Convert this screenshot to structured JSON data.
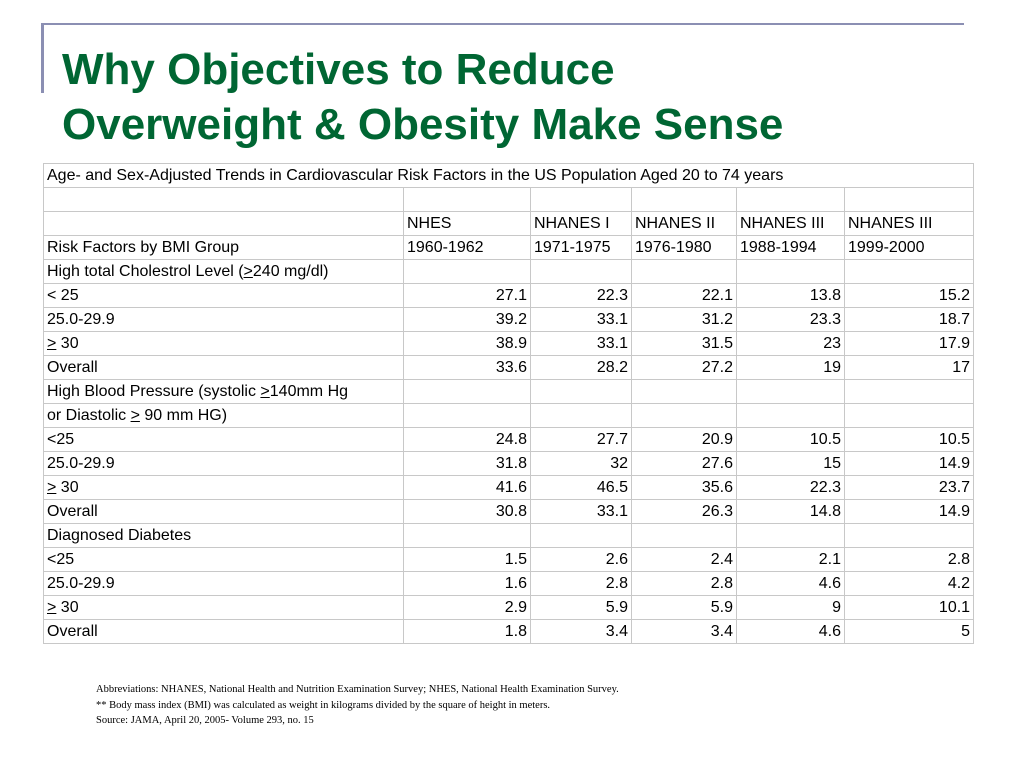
{
  "title": {
    "line1": "Why Objectives to Reduce",
    "line2": "Overweight & Obesity Make Sense"
  },
  "table": {
    "caption": "Age- and Sex-Adjusted Trends in Cardiovascular Risk Factors in the US Population Aged 20 to 74 years",
    "survey_headers": [
      "NHES",
      "NHANES I",
      "NHANES II",
      "NHANES III",
      "NHANES III"
    ],
    "row_header_label": "Risk Factors by BMI Group",
    "years": [
      "1960-1962",
      "1971-1975",
      "1976-1980",
      "1988-1994",
      "1999-2000"
    ],
    "cholesterol": {
      "heading_pre": "High total Cholestrol Level (",
      "heading_sym": ">",
      "heading_post": "240 mg/dl)",
      "rows": [
        {
          "label": "< 25",
          "values": [
            "27.1",
            "22.3",
            "22.1",
            "13.8",
            "15.2"
          ]
        },
        {
          "label": "25.0-29.9",
          "values": [
            "39.2",
            "33.1",
            "31.2",
            "23.3",
            "18.7"
          ]
        },
        {
          "label_sym": ">",
          "label": "30",
          "values": [
            "38.9",
            "33.1",
            "31.5",
            "23",
            "17.9"
          ]
        },
        {
          "label": "Overall",
          "values": [
            "33.6",
            "28.2",
            "27.2",
            "19",
            "17"
          ]
        }
      ]
    },
    "blood_pressure": {
      "heading1_pre": "High Blood Pressure (systolic ",
      "heading1_sym": ">",
      "heading1_post": "140mm Hg",
      "heading2_pre": "or Diastolic ",
      "heading2_sym": ">",
      "heading2_post": " 90 mm HG)",
      "rows": [
        {
          "label": "<25",
          "values": [
            "24.8",
            "27.7",
            "20.9",
            "10.5",
            "10.5"
          ]
        },
        {
          "label": "25.0-29.9",
          "values": [
            "31.8",
            "32",
            "27.6",
            "15",
            "14.9"
          ]
        },
        {
          "label_sym": ">",
          "label": "30",
          "values": [
            "41.6",
            "46.5",
            "35.6",
            "22.3",
            "23.7"
          ]
        },
        {
          "label": "Overall",
          "values": [
            "30.8",
            "33.1",
            "26.3",
            "14.8",
            "14.9"
          ]
        }
      ]
    },
    "diabetes": {
      "heading": "Diagnosed Diabetes",
      "rows": [
        {
          "label": "<25",
          "values": [
            "1.5",
            "2.6",
            "2.4",
            "2.1",
            "2.8"
          ]
        },
        {
          "label": "25.0-29.9",
          "values": [
            "1.6",
            "2.8",
            "2.8",
            "4.6",
            "4.2"
          ]
        },
        {
          "label_sym": ">",
          "label": "30",
          "values": [
            "2.9",
            "5.9",
            "5.9",
            "9",
            "10.1"
          ]
        },
        {
          "label": "Overall",
          "values": [
            "1.8",
            "3.4",
            "3.4",
            "4.6",
            "5"
          ]
        }
      ]
    }
  },
  "footnotes": {
    "abbreviations": "Abbreviations: NHANES, National Health and Nutrition Examination Survey; NHES, National Health Examination Survey.",
    "bmi": "** Body mass index (BMI) was calculated as weight in kilograms divided by the square of height in meters.",
    "source": "Source: JAMA, April 20, 2005- Volume 293, no. 15"
  },
  "colors": {
    "title": "#006633",
    "accent_line": "#8b8fb3",
    "grid": "#c8c8c8"
  }
}
